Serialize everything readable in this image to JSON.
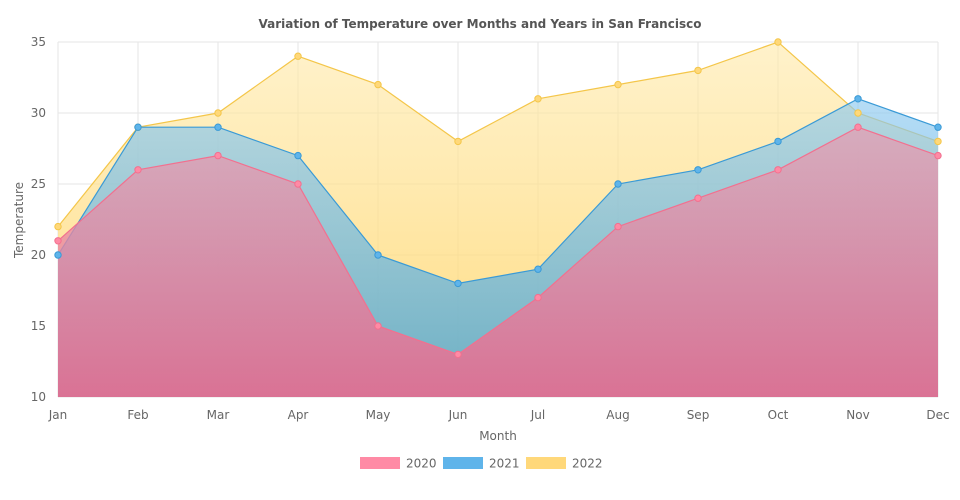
{
  "chart_data": {
    "type": "area",
    "title": "Variation of Temperature over Months and Years in San Francisco",
    "xlabel": "Month",
    "ylabel": "Temperature",
    "categories": [
      "Jan",
      "Feb",
      "Mar",
      "Apr",
      "May",
      "Jun",
      "Jul",
      "Aug",
      "Sep",
      "Oct",
      "Nov",
      "Dec"
    ],
    "ylim": [
      10,
      35
    ],
    "yticks": [
      "10",
      "15",
      "20",
      "25",
      "30",
      "35"
    ],
    "grid": true,
    "legend_position": "bottom",
    "series": [
      {
        "name": "2020",
        "color": "#ff8aa5",
        "values": [
          21,
          26,
          27,
          25,
          15,
          13,
          17,
          22,
          24,
          26,
          29,
          27
        ]
      },
      {
        "name": "2021",
        "color": "#5fb4ea",
        "values": [
          20,
          29,
          29,
          27,
          20,
          18,
          19,
          25,
          26,
          28,
          31,
          29
        ]
      },
      {
        "name": "2022",
        "color": "#ffd87a",
        "values": [
          22,
          29,
          30,
          34,
          32,
          28,
          31,
          32,
          33,
          35,
          30,
          28
        ]
      }
    ]
  }
}
